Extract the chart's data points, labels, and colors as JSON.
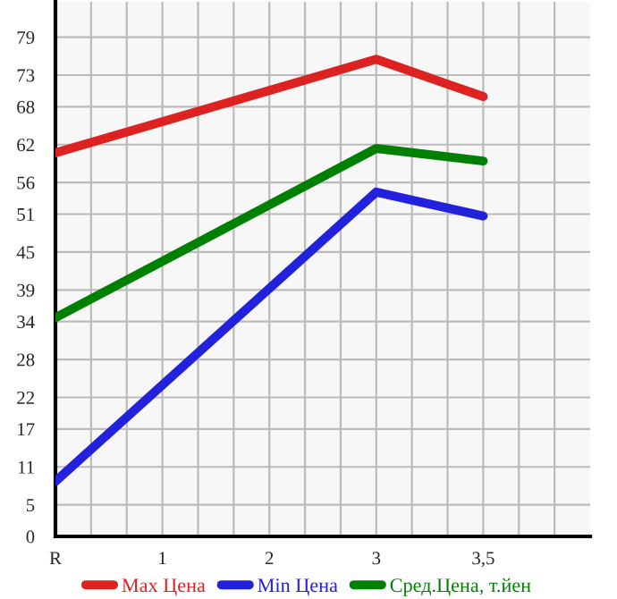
{
  "chart_data": {
    "type": "line",
    "categories": [
      "R",
      "1",
      "2",
      "3",
      "3,5"
    ],
    "ylim": [
      0,
      84.6
    ],
    "yticks": [
      0,
      5,
      11,
      17,
      22,
      28,
      34,
      39,
      45,
      51,
      56,
      62,
      68,
      73,
      79
    ],
    "grid": true,
    "legend": "bottom",
    "marker": "none",
    "line_style": "solid",
    "series": [
      {
        "name": "Max Цена",
        "color": "#dd2222",
        "x": [
          "R",
          "3",
          "3,5"
        ],
        "values": [
          60.7,
          75.5,
          69.6
        ]
      },
      {
        "name": "Min Цена",
        "color": "#2222dd",
        "x": [
          "R",
          "3",
          "3,5"
        ],
        "values": [
          8.7,
          54.5,
          50.7
        ]
      },
      {
        "name": "Сред.Цена, т.йен",
        "color": "#008000",
        "x": [
          "R",
          "3",
          "3,5"
        ],
        "values": [
          34.6,
          61.4,
          59.4
        ]
      }
    ]
  }
}
